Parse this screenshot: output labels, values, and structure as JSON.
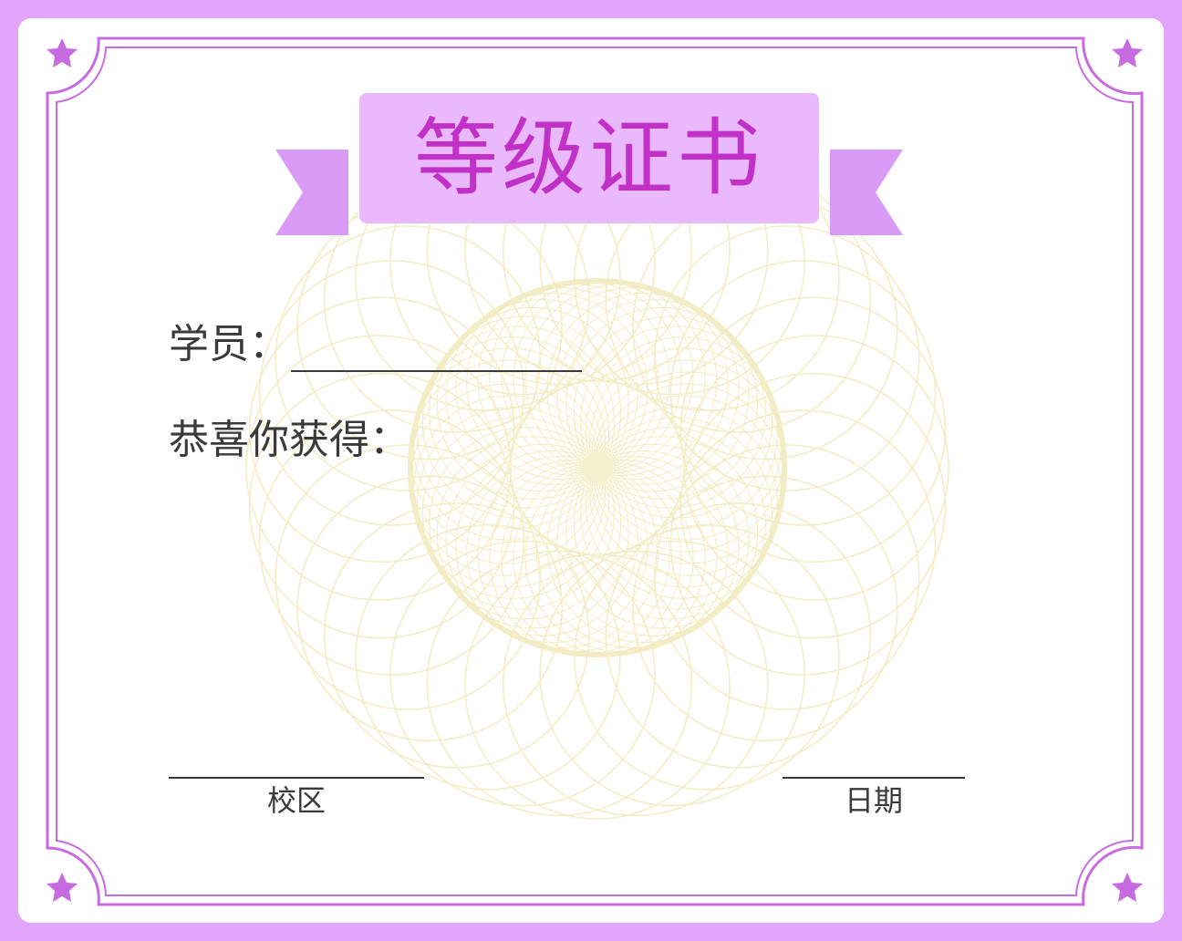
{
  "certificate": {
    "title": "等级证书",
    "student_label": "学员：",
    "congrats_label": "恭喜你获得：",
    "campus_label": "校区",
    "date_label": "日期"
  },
  "colors": {
    "outer_border": "#e3a4fb",
    "inner_frame": "#c76be0",
    "banner_fill": "#e9b8fd",
    "ribbon_fill": "#d99bf5",
    "title_text": "#c231c7",
    "guilloche": "#f3edc4",
    "text": "#3a3a3a"
  },
  "icons": {
    "corner": "star-icon"
  }
}
